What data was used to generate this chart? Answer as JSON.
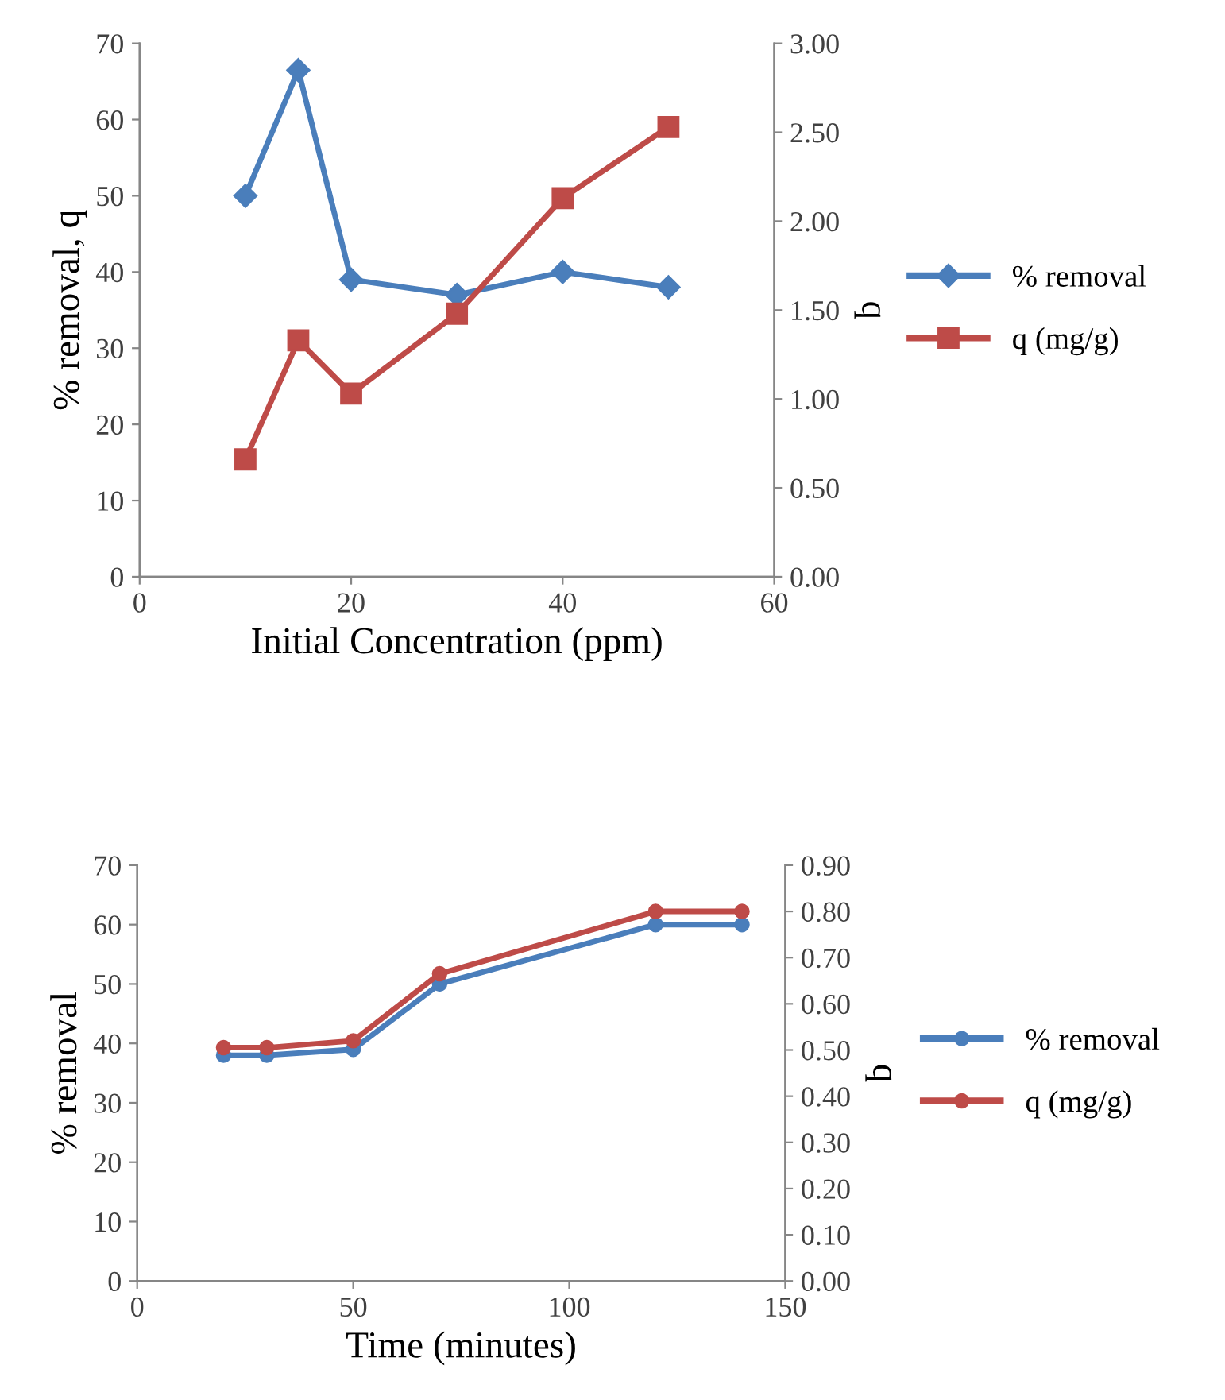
{
  "chart_data": [
    {
      "type": "line",
      "xlabel": "Initial Concentration (ppm)",
      "ylabel": "% removal, q",
      "y2label": "q",
      "xlim": [
        0,
        60
      ],
      "xticks": [
        0,
        20,
        40,
        60
      ],
      "ylim": [
        0,
        70
      ],
      "yticks": [
        0,
        10,
        20,
        30,
        40,
        50,
        60,
        70
      ],
      "y2lim": [
        0,
        3
      ],
      "y2ticks": [
        {
          "value": 0,
          "label": "0.00"
        },
        {
          "value": 0.5,
          "label": "0.50"
        },
        {
          "value": 1,
          "label": "1.00"
        },
        {
          "value": 1.5,
          "label": "1.50"
        },
        {
          "value": 2,
          "label": "2.00"
        },
        {
          "value": 2.5,
          "label": "2.50"
        },
        {
          "value": 3,
          "label": "3.00"
        }
      ],
      "grid": false,
      "legend": "right",
      "line_style": "solid",
      "series": [
        {
          "name": "% removal",
          "color": "#4a7ebb",
          "marker": "diamond",
          "x": [
            10,
            15,
            20,
            30,
            40,
            50
          ],
          "values": [
            50,
            66.5,
            39,
            37,
            40,
            38
          ]
        },
        {
          "name": "q (mg/g)",
          "color": "#be4b48",
          "marker": "square",
          "axis": "y2",
          "x": [
            10,
            15,
            20,
            30,
            40,
            50
          ],
          "values": [
            0.66,
            1.33,
            1.03,
            1.48,
            2.13,
            2.53
          ]
        }
      ]
    },
    {
      "type": "line",
      "xlabel": "Time (minutes)",
      "ylabel": "% removal",
      "y2label": "q",
      "xlim": [
        0,
        150
      ],
      "xticks": [
        0,
        50,
        100,
        150
      ],
      "ylim": [
        0,
        70
      ],
      "yticks": [
        0,
        10,
        20,
        30,
        40,
        50,
        60,
        70
      ],
      "y2lim": [
        0,
        0.9
      ],
      "y2ticks": [
        {
          "value": 0,
          "label": "0.00"
        },
        {
          "value": 0.1,
          "label": "0.10"
        },
        {
          "value": 0.2,
          "label": "0.20"
        },
        {
          "value": 0.3,
          "label": "0.30"
        },
        {
          "value": 0.4,
          "label": "0.40"
        },
        {
          "value": 0.5,
          "label": "0.50"
        },
        {
          "value": 0.6,
          "label": "0.60"
        },
        {
          "value": 0.7,
          "label": "0.70"
        },
        {
          "value": 0.8,
          "label": "0.80"
        },
        {
          "value": 0.9,
          "label": "0.90"
        }
      ],
      "grid": false,
      "legend": "right",
      "line_style": "solid",
      "series": [
        {
          "name": "% removal",
          "color": "#4a7ebb",
          "marker": "circle",
          "x": [
            20,
            30,
            50,
            70,
            120,
            140
          ],
          "values": [
            38,
            38,
            39,
            50,
            60,
            60
          ]
        },
        {
          "name": "q (mg/g)",
          "color": "#be4b48",
          "marker": "circle",
          "axis": "y2",
          "x": [
            20,
            30,
            50,
            70,
            120,
            140
          ],
          "values": [
            0.505,
            0.505,
            0.52,
            0.665,
            0.8,
            0.8
          ]
        }
      ]
    }
  ]
}
